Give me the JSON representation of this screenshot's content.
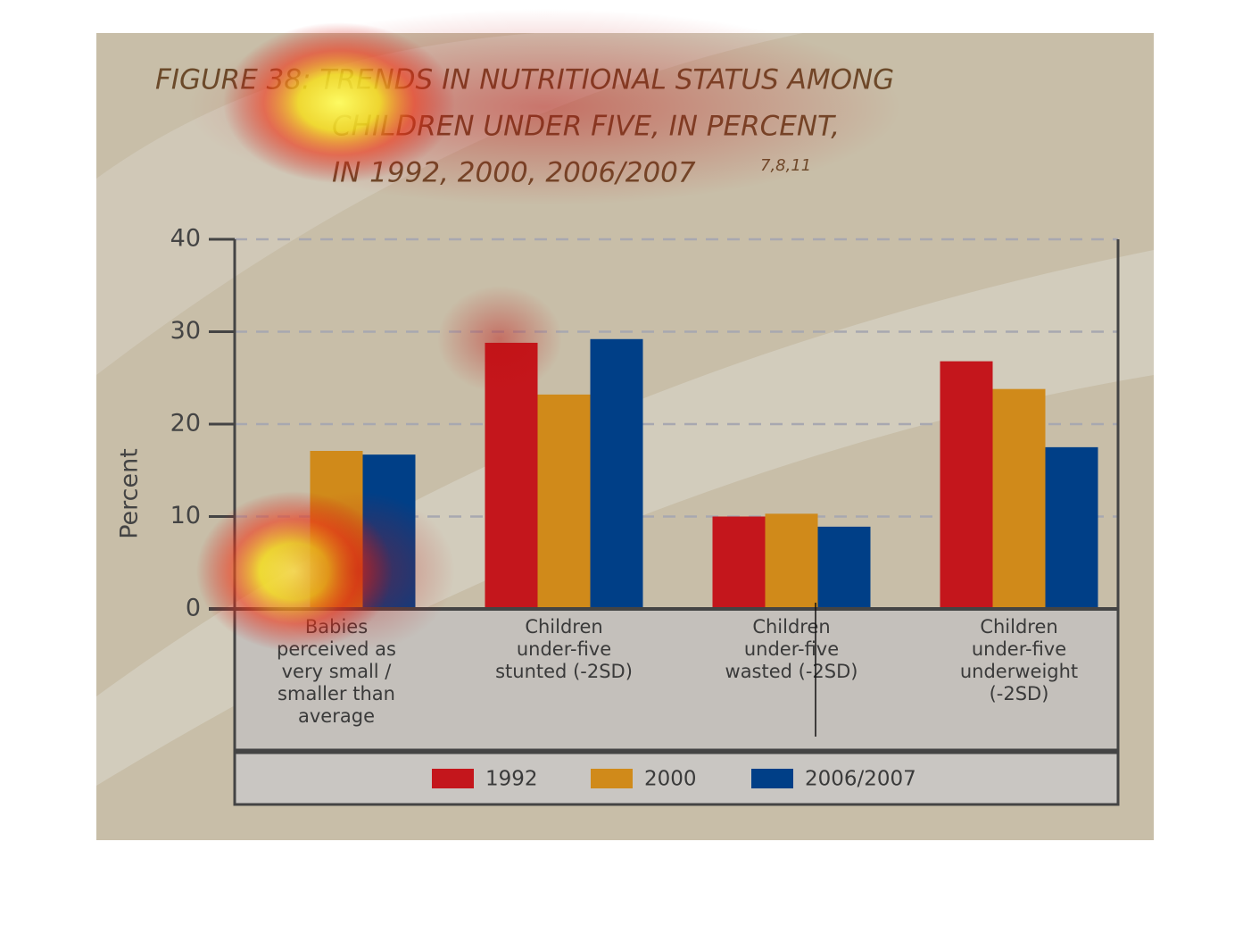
{
  "chart_data": {
    "type": "bar",
    "title": [
      "FIGURE 38: TRENDS IN NUTRITIONAL STATUS AMONG",
      "CHILDREN UNDER FIVE, IN PERCENT,",
      "IN 1992, 2000, 2006/2007"
    ],
    "title_superscript": "7,8,11",
    "y_label": "Percent",
    "categories": [
      [
        "Babies",
        "perceived as",
        "very small /",
        "smaller than",
        "average"
      ],
      [
        "Children",
        "under-five",
        "stunted (-2SD)"
      ],
      [
        "Children",
        "under-five",
        "wasted (-2SD)"
      ],
      [
        "Children",
        "under-five",
        "underweight",
        "(-2SD)"
      ]
    ],
    "series": [
      {
        "name": "1992",
        "color": "#c4161c",
        "values": [
          null,
          28.8,
          10.0,
          26.8
        ]
      },
      {
        "name": "2000",
        "color": "#d08a1a",
        "values": [
          17.1,
          23.2,
          10.3,
          23.8
        ]
      },
      {
        "name": "2006/2007",
        "color": "#003f87",
        "values": [
          16.7,
          29.2,
          8.9,
          17.5
        ]
      }
    ],
    "ylim": [
      0,
      40
    ],
    "yticks": [
      0,
      10,
      20,
      30,
      40
    ],
    "grid": true
  }
}
